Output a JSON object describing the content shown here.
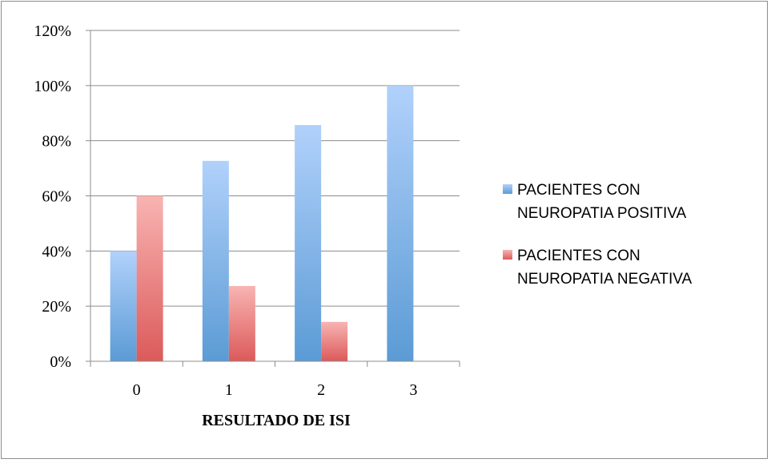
{
  "chart_data": {
    "type": "bar",
    "categories": [
      "0",
      "1",
      "2",
      "3"
    ],
    "series": [
      {
        "name": "PACIENTES CON NEUROPATIA POSITIVA",
        "values": [
          40,
          72.7,
          85.7,
          100
        ],
        "color": "#5b9bd5"
      },
      {
        "name": "PACIENTES CON NEUROPATIA NEGATIVA",
        "values": [
          60,
          27.3,
          14.3,
          0
        ],
        "color": "#e46c6c"
      }
    ],
    "title": "",
    "xlabel": "RESULTADO DE ISI",
    "ylabel": "",
    "ylim": [
      0,
      120
    ],
    "yticks": [
      "0%",
      "20%",
      "40%",
      "60%",
      "80%",
      "100%",
      "120%"
    ],
    "grid": true,
    "legend_position": "right",
    "legend": [
      {
        "lines": [
          "PACIENTES CON",
          "NEUROPATIA POSITIVA"
        ]
      },
      {
        "lines": [
          "PACIENTES CON",
          "NEUROPATIA NEGATIVA"
        ]
      }
    ]
  }
}
